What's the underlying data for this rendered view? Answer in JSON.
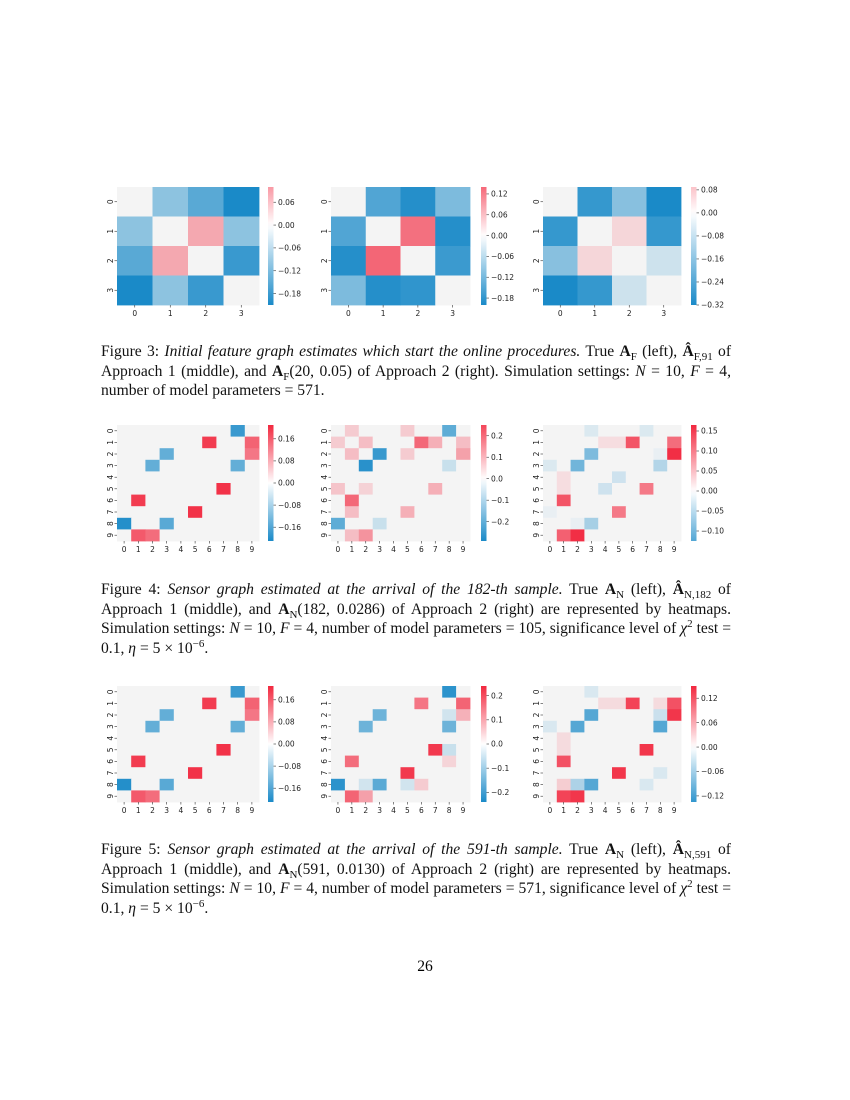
{
  "colors": {
    "negative": "#1a8ac8",
    "center": "#f6f6f6",
    "positive": "#f2283f",
    "diagonal": "#f4f4f4"
  },
  "chart_data": [
    {
      "type": "heatmap",
      "figure": 3,
      "panel": "left",
      "x_ticks": [
        "0",
        "1",
        "2",
        "3"
      ],
      "y_ticks": [
        "0",
        "1",
        "2",
        "3"
      ],
      "vmin": -0.21,
      "vmax": 0.1,
      "colorbar_ticks": [
        0.06,
        0.0,
        -0.06,
        -0.12,
        -0.18
      ],
      "matrix": [
        [
          0,
          -0.1,
          -0.15,
          -0.21
        ],
        [
          -0.1,
          0,
          0.08,
          -0.1
        ],
        [
          -0.15,
          0.08,
          0,
          -0.18
        ],
        [
          -0.21,
          -0.1,
          -0.18,
          0
        ]
      ]
    },
    {
      "type": "heatmap",
      "figure": 3,
      "panel": "middle",
      "x_ticks": [
        "0",
        "1",
        "2",
        "3"
      ],
      "y_ticks": [
        "0",
        "1",
        "2",
        "3"
      ],
      "vmin": -0.2,
      "vmax": 0.14,
      "colorbar_ticks": [
        0.12,
        0.06,
        0.0,
        -0.06,
        -0.12,
        -0.18
      ],
      "matrix": [
        [
          0,
          -0.15,
          -0.19,
          -0.11
        ],
        [
          -0.15,
          0,
          0.13,
          -0.19
        ],
        [
          -0.19,
          0.14,
          0,
          -0.17
        ],
        [
          -0.11,
          -0.19,
          -0.18,
          0
        ]
      ]
    },
    {
      "type": "heatmap",
      "figure": 3,
      "panel": "right",
      "x_ticks": [
        "0",
        "1",
        "2",
        "3"
      ],
      "y_ticks": [
        "0",
        "1",
        "2",
        "3"
      ],
      "vmin": -0.32,
      "vmax": 0.09,
      "colorbar_ticks": [
        0.08,
        0.0,
        -0.08,
        -0.16,
        -0.24,
        -0.32
      ],
      "matrix": [
        [
          0,
          -0.28,
          -0.16,
          -0.32
        ],
        [
          -0.28,
          0,
          0.05,
          -0.28
        ],
        [
          -0.16,
          0.05,
          0,
          -0.06
        ],
        [
          -0.32,
          -0.28,
          -0.06,
          0
        ]
      ]
    },
    {
      "type": "heatmap",
      "figure": 4,
      "panel": "left",
      "x_ticks": [
        "0",
        "1",
        "2",
        "3",
        "4",
        "5",
        "6",
        "7",
        "8",
        "9"
      ],
      "y_ticks": [
        "0",
        "1",
        "2",
        "3",
        "4",
        "5",
        "6",
        "7",
        "8",
        "9"
      ],
      "vmin": -0.21,
      "vmax": 0.21,
      "colorbar_ticks": [
        0.16,
        0.08,
        0.0,
        -0.08,
        -0.16
      ],
      "matrix": [
        [
          0,
          0,
          0,
          0,
          0,
          0,
          0,
          0,
          -0.18,
          0
        ],
        [
          0,
          0,
          0,
          0,
          0,
          0,
          0.19,
          0,
          0,
          0.15
        ],
        [
          0,
          0,
          0,
          -0.14,
          0,
          0,
          0,
          0,
          0,
          0.13
        ],
        [
          0,
          0,
          -0.14,
          0,
          0,
          0,
          0,
          0,
          -0.14,
          0
        ],
        [
          0,
          0,
          0,
          0,
          0,
          0,
          0,
          0,
          0,
          0
        ],
        [
          0,
          0,
          0,
          0,
          0,
          0,
          0,
          0.2,
          0,
          0
        ],
        [
          0,
          0.19,
          0,
          0,
          0,
          0,
          0,
          0,
          0,
          0
        ],
        [
          0,
          0,
          0,
          0,
          0,
          0.2,
          0,
          0,
          0,
          0
        ],
        [
          -0.2,
          0,
          0,
          -0.15,
          0,
          0,
          0,
          0,
          0,
          0
        ],
        [
          0,
          0.16,
          0.14,
          0,
          0,
          0,
          0,
          0,
          0,
          0
        ]
      ]
    },
    {
      "type": "heatmap",
      "figure": 4,
      "panel": "middle",
      "x_ticks": [
        "0",
        "1",
        "2",
        "3",
        "4",
        "5",
        "6",
        "7",
        "8",
        "9"
      ],
      "y_ticks": [
        "0",
        "1",
        "2",
        "3",
        "4",
        "5",
        "6",
        "7",
        "8",
        "9"
      ],
      "vmin": -0.29,
      "vmax": 0.25,
      "colorbar_ticks": [
        0.2,
        0.1,
        0.0,
        -0.1,
        -0.2
      ],
      "matrix": [
        [
          0,
          0.06,
          0,
          0,
          0,
          0.06,
          0,
          0,
          -0.2,
          0
        ],
        [
          0.06,
          0,
          0.08,
          0,
          0,
          0,
          0.2,
          0.1,
          0,
          0.08
        ],
        [
          0,
          0.08,
          0,
          -0.25,
          0,
          0.06,
          0,
          0,
          0,
          0.12
        ],
        [
          0,
          0,
          -0.27,
          0,
          0,
          0,
          0,
          0,
          -0.06,
          0
        ],
        [
          0,
          0,
          0,
          0,
          0,
          0,
          0,
          0,
          0,
          0
        ],
        [
          0.07,
          0,
          0.05,
          0,
          0,
          0,
          0,
          0.1,
          0,
          0
        ],
        [
          0,
          0.2,
          0,
          0,
          0,
          0,
          0,
          0,
          0,
          0
        ],
        [
          0,
          0.08,
          0,
          0,
          0,
          0.1,
          0,
          0,
          0,
          0
        ],
        [
          -0.2,
          0,
          0,
          -0.06,
          0,
          0,
          0,
          0,
          0,
          0
        ],
        [
          0,
          0.08,
          0.14,
          0,
          0,
          0,
          0,
          0,
          0,
          0
        ]
      ]
    },
    {
      "type": "heatmap",
      "figure": 4,
      "panel": "right",
      "x_ticks": [
        "0",
        "1",
        "2",
        "3",
        "4",
        "5",
        "6",
        "7",
        "8",
        "9"
      ],
      "y_ticks": [
        "0",
        "1",
        "2",
        "3",
        "4",
        "5",
        "6",
        "7",
        "8",
        "9"
      ],
      "vmin": -0.125,
      "vmax": 0.165,
      "colorbar_ticks": [
        0.15,
        0.1,
        0.05,
        0.0,
        -0.05,
        -0.1
      ],
      "matrix": [
        [
          0,
          0,
          0,
          -0.02,
          0,
          0,
          0,
          -0.02,
          0,
          0
        ],
        [
          0,
          0,
          0,
          0,
          0.02,
          0.02,
          0.13,
          0,
          0,
          0.11
        ],
        [
          0,
          0,
          0,
          -0.09,
          0,
          0,
          0,
          0,
          -0.01,
          0.16
        ],
        [
          -0.02,
          0,
          -0.1,
          0,
          0,
          0,
          0,
          0,
          -0.05,
          0
        ],
        [
          0,
          0.02,
          0,
          0,
          0,
          -0.03,
          0,
          0,
          0,
          0
        ],
        [
          0,
          0.02,
          0,
          0,
          -0.03,
          0,
          0,
          0.1,
          0,
          0
        ],
        [
          0,
          0.13,
          0,
          0,
          0,
          0,
          0,
          0,
          0,
          0
        ],
        [
          -0.01,
          0,
          0,
          0,
          0,
          0.1,
          0,
          0,
          0,
          0
        ],
        [
          0,
          0,
          -0.01,
          -0.06,
          0,
          0,
          0,
          0,
          0,
          0
        ],
        [
          0,
          0.12,
          0.16,
          0,
          0,
          0,
          0,
          0,
          0,
          0
        ]
      ]
    },
    {
      "type": "heatmap",
      "figure": 5,
      "panel": "left",
      "x_ticks": [
        "0",
        "1",
        "2",
        "3",
        "4",
        "5",
        "6",
        "7",
        "8",
        "9"
      ],
      "y_ticks": [
        "0",
        "1",
        "2",
        "3",
        "4",
        "5",
        "6",
        "7",
        "8",
        "9"
      ],
      "vmin": -0.21,
      "vmax": 0.21,
      "colorbar_ticks": [
        0.16,
        0.08,
        0.0,
        -0.08,
        -0.16
      ],
      "matrix": [
        [
          0,
          0,
          0,
          0,
          0,
          0,
          0,
          0,
          -0.18,
          0
        ],
        [
          0,
          0,
          0,
          0,
          0,
          0,
          0.19,
          0,
          0,
          0.15
        ],
        [
          0,
          0,
          0,
          -0.14,
          0,
          0,
          0,
          0,
          0,
          0.13
        ],
        [
          0,
          0,
          -0.14,
          0,
          0,
          0,
          0,
          0,
          -0.14,
          0
        ],
        [
          0,
          0,
          0,
          0,
          0,
          0,
          0,
          0,
          0,
          0
        ],
        [
          0,
          0,
          0,
          0,
          0,
          0,
          0,
          0.2,
          0,
          0
        ],
        [
          0,
          0.19,
          0,
          0,
          0,
          0,
          0,
          0,
          0,
          0
        ],
        [
          0,
          0,
          0,
          0,
          0,
          0.2,
          0,
          0,
          0,
          0
        ],
        [
          -0.2,
          0,
          0,
          -0.15,
          0,
          0,
          0,
          0,
          0,
          0
        ],
        [
          0,
          0.16,
          0.14,
          0,
          0,
          0,
          0,
          0,
          0,
          0
        ]
      ]
    },
    {
      "type": "heatmap",
      "figure": 5,
      "panel": "middle",
      "x_ticks": [
        "0",
        "1",
        "2",
        "3",
        "4",
        "5",
        "6",
        "7",
        "8",
        "9"
      ],
      "y_ticks": [
        "0",
        "1",
        "2",
        "3",
        "4",
        "5",
        "6",
        "7",
        "8",
        "9"
      ],
      "vmin": -0.24,
      "vmax": 0.24,
      "colorbar_ticks": [
        0.2,
        0.1,
        0.0,
        -0.1,
        -0.2
      ],
      "matrix": [
        [
          0,
          0,
          0,
          0,
          0,
          0,
          0,
          0,
          -0.22,
          0
        ],
        [
          0,
          0,
          0,
          0,
          0,
          0,
          0.15,
          0,
          0,
          0.17
        ],
        [
          0,
          0,
          0,
          -0.15,
          0,
          0,
          0,
          0,
          -0.04,
          0.08
        ],
        [
          0,
          0,
          -0.15,
          0,
          0,
          0,
          0,
          0,
          -0.15,
          0
        ],
        [
          0,
          0,
          0,
          0,
          0,
          0,
          0,
          0,
          0,
          0
        ],
        [
          0,
          0,
          0,
          0,
          0,
          0,
          0,
          0.22,
          -0.05,
          0
        ],
        [
          0,
          0.16,
          0,
          0,
          0,
          0,
          0,
          0,
          0.04,
          0
        ],
        [
          0,
          0,
          0,
          0,
          0,
          0.22,
          0,
          0,
          0,
          0
        ],
        [
          -0.22,
          0,
          -0.04,
          -0.17,
          0,
          -0.04,
          0.05,
          0,
          0,
          0
        ],
        [
          0,
          0.17,
          0.1,
          0,
          0,
          0,
          0,
          0,
          0,
          0
        ]
      ]
    },
    {
      "type": "heatmap",
      "figure": 5,
      "panel": "right",
      "x_ticks": [
        "0",
        "1",
        "2",
        "3",
        "4",
        "5",
        "6",
        "7",
        "8",
        "9"
      ],
      "y_ticks": [
        "0",
        "1",
        "2",
        "3",
        "4",
        "5",
        "6",
        "7",
        "8",
        "9"
      ],
      "vmin": -0.135,
      "vmax": 0.15,
      "colorbar_ticks": [
        0.12,
        0.06,
        0.0,
        -0.06,
        -0.12
      ],
      "matrix": [
        [
          0,
          0,
          0,
          -0.02,
          0,
          0,
          0,
          0,
          0,
          0
        ],
        [
          0,
          0,
          0,
          0,
          0.02,
          0.02,
          0.13,
          0,
          0.02,
          0.12
        ],
        [
          0,
          0,
          0,
          -0.11,
          0,
          0,
          0,
          0,
          -0.03,
          0.14
        ],
        [
          -0.02,
          0,
          -0.11,
          0,
          0,
          0,
          0,
          0,
          -0.11,
          0
        ],
        [
          0,
          0.02,
          0,
          0,
          0,
          0,
          0,
          0,
          0,
          0
        ],
        [
          0,
          0.02,
          0,
          0,
          0,
          0,
          0,
          0.14,
          0,
          0
        ],
        [
          0,
          0.12,
          0,
          0,
          0,
          0,
          0,
          0,
          0,
          0
        ],
        [
          0,
          0,
          0,
          0,
          0,
          0.14,
          0,
          0,
          -0.02,
          0
        ],
        [
          0,
          0.03,
          -0.05,
          -0.11,
          0,
          0,
          0,
          -0.02,
          0,
          0
        ],
        [
          0,
          0.13,
          0.14,
          0,
          0,
          0,
          0,
          0,
          0,
          0
        ]
      ]
    }
  ],
  "captions": [
    [
      [
        "n",
        "Figure 3:  "
      ],
      [
        "i",
        "Initial feature graph estimates which start the online procedures."
      ],
      [
        "n",
        " True "
      ],
      [
        "b",
        "A"
      ],
      [
        "sub",
        "F"
      ],
      [
        "n",
        " (left), "
      ],
      [
        "b",
        "Â"
      ],
      [
        "sub",
        "F,91"
      ],
      [
        "n",
        " of Approach 1 (middle), and "
      ],
      [
        "b",
        "A"
      ],
      [
        "sub",
        "F"
      ],
      [
        "n",
        "(20, 0.05) of Approach 2 (right). Simulation settings: "
      ],
      [
        "i",
        "N"
      ],
      [
        "n",
        " = 10, "
      ],
      [
        "i",
        "F"
      ],
      [
        "n",
        " = 4, number of model parameters = 571."
      ]
    ],
    [
      [
        "n",
        "Figure 4:  "
      ],
      [
        "i",
        "Sensor graph estimated at the arrival of the 182-th sample."
      ],
      [
        "n",
        "  True "
      ],
      [
        "b",
        "A"
      ],
      [
        "sub",
        "N"
      ],
      [
        "n",
        " (left), "
      ],
      [
        "b",
        "Â"
      ],
      [
        "sub",
        "N,182"
      ],
      [
        "n",
        " of Approach 1 (middle), and "
      ],
      [
        "b",
        "A"
      ],
      [
        "sub",
        "N"
      ],
      [
        "n",
        "(182, 0.0286) of Approach 2 (right) are represented by heatmaps.  Simulation settings: "
      ],
      [
        "i",
        "N"
      ],
      [
        "n",
        " = 10, "
      ],
      [
        "i",
        "F"
      ],
      [
        "n",
        " = 4, number of model parameters = 105, significance level of "
      ],
      [
        "i",
        "χ"
      ],
      [
        "sup",
        "2"
      ],
      [
        "n",
        " test = 0.1, "
      ],
      [
        "i",
        "η"
      ],
      [
        "n",
        " = 5 × 10"
      ],
      [
        "sup",
        "−6"
      ],
      [
        "n",
        "."
      ]
    ],
    [
      [
        "n",
        "Figure 5:  "
      ],
      [
        "i",
        "Sensor graph estimated at the arrival of the 591-th sample."
      ],
      [
        "n",
        "  True "
      ],
      [
        "b",
        "A"
      ],
      [
        "sub",
        "N"
      ],
      [
        "n",
        " (left), "
      ],
      [
        "b",
        "Â"
      ],
      [
        "sub",
        "N,591"
      ],
      [
        "n",
        " of Approach 1 (middle), and "
      ],
      [
        "b",
        "A"
      ],
      [
        "sub",
        "N"
      ],
      [
        "n",
        "(591, 0.0130) of Approach 2 (right) are represented by heatmaps.  Simulation settings: "
      ],
      [
        "i",
        "N"
      ],
      [
        "n",
        " = 10, "
      ],
      [
        "i",
        "F"
      ],
      [
        "n",
        " = 4, number of model parameters = 571, significance level of "
      ],
      [
        "i",
        "χ"
      ],
      [
        "sup",
        "2"
      ],
      [
        "n",
        " test = 0.1, "
      ],
      [
        "i",
        "η"
      ],
      [
        "n",
        " = 5 × 10"
      ],
      [
        "sup",
        "−6"
      ],
      [
        "n",
        "."
      ]
    ]
  ],
  "page_number": "26"
}
